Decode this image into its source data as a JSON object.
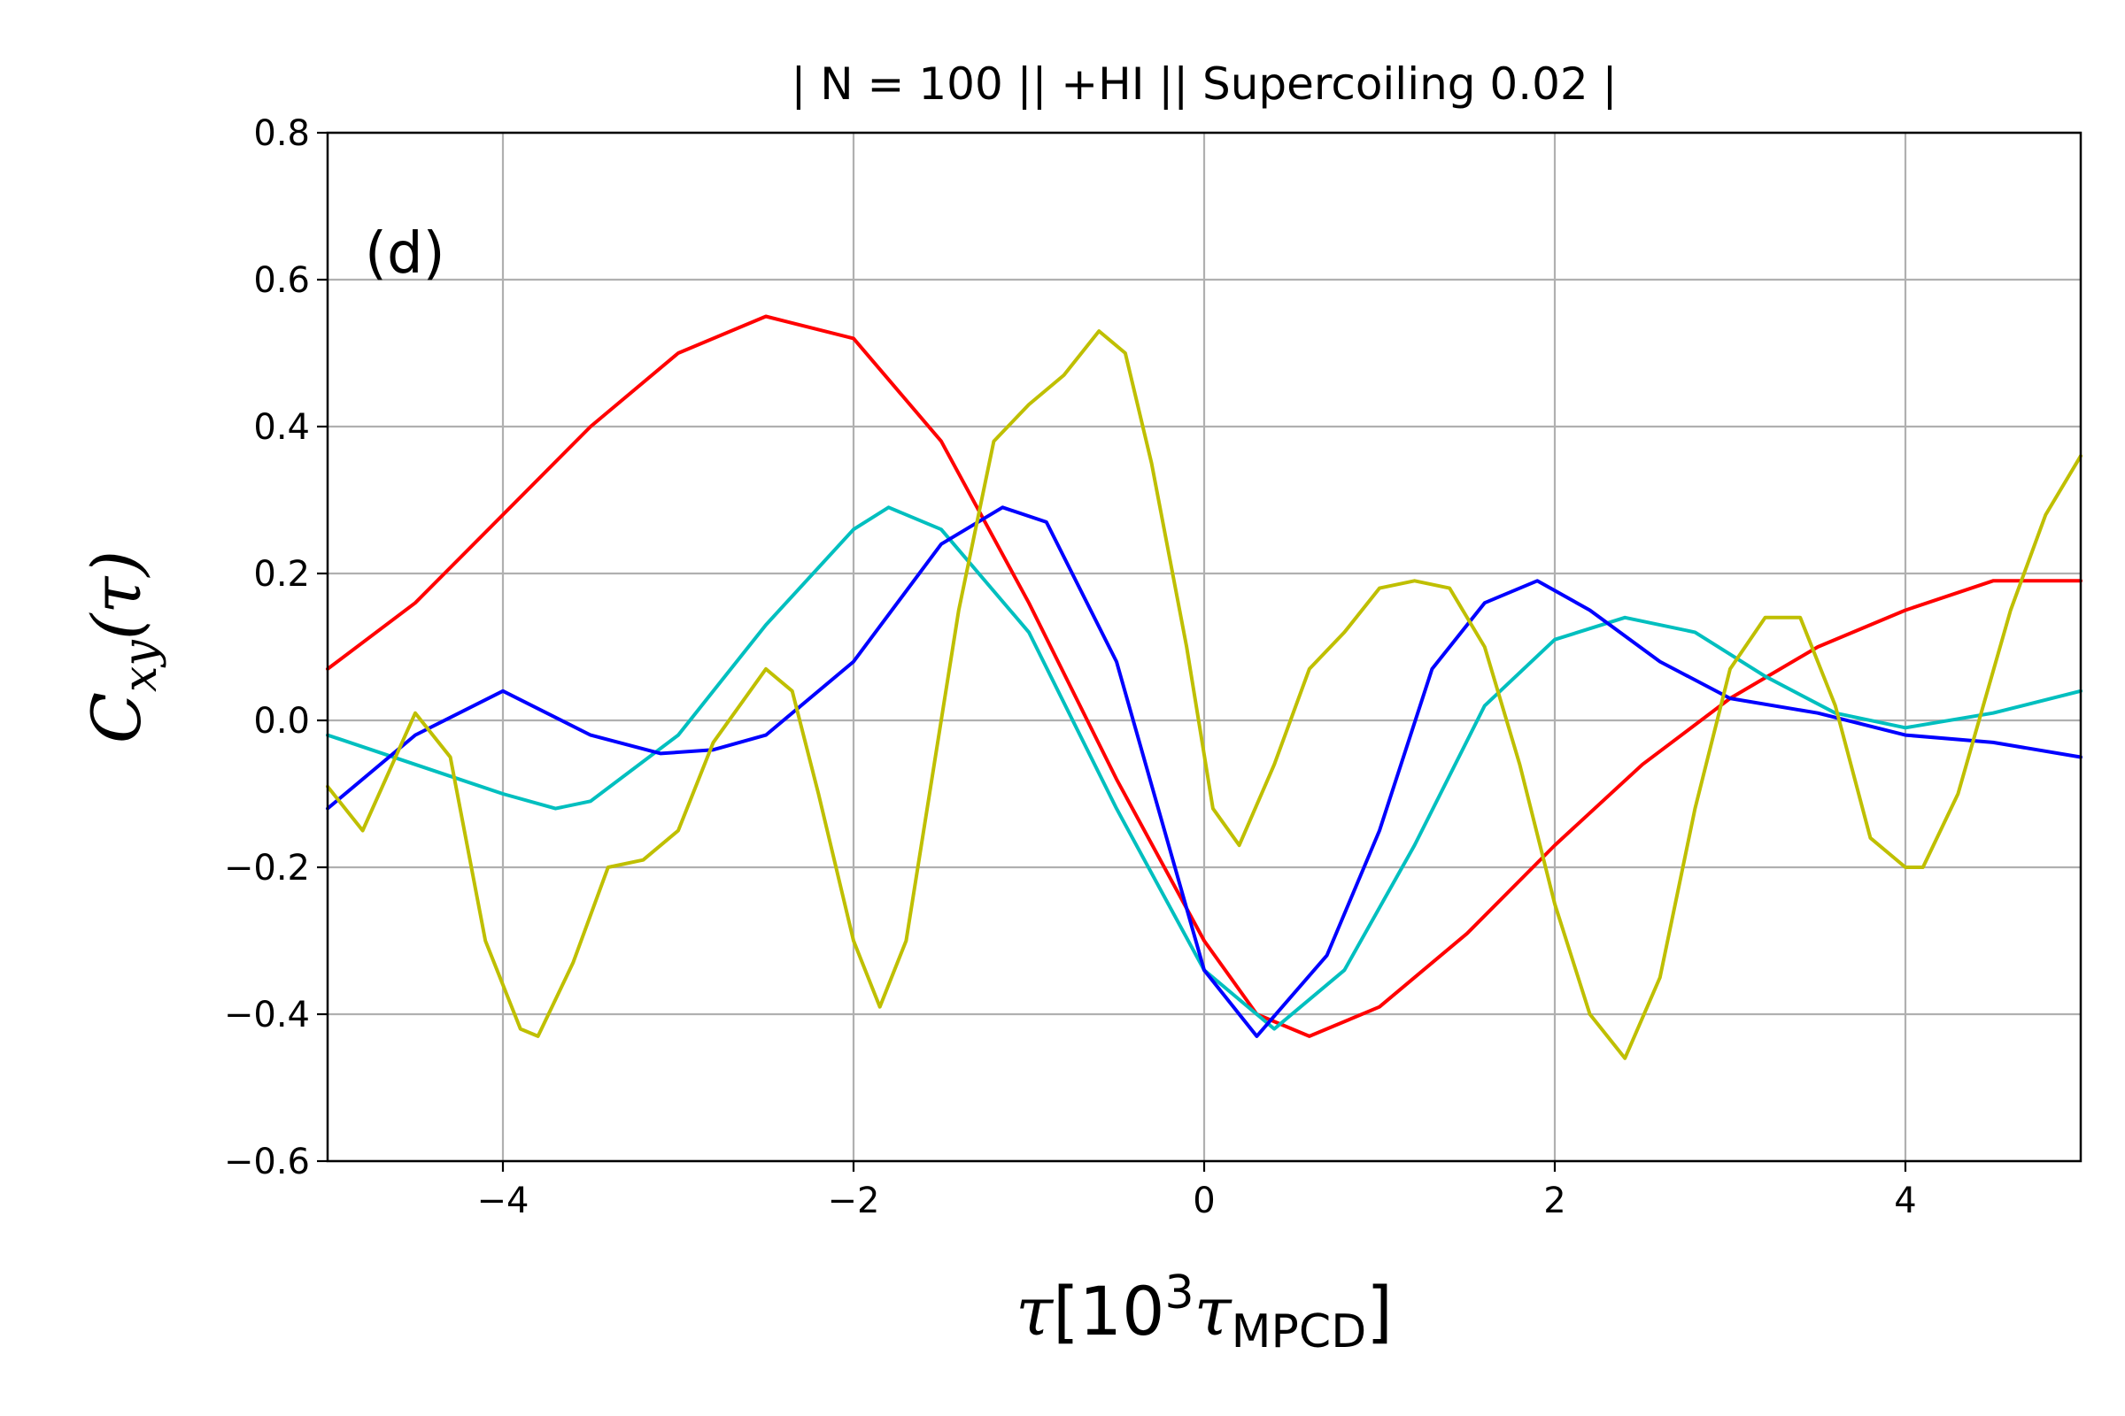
{
  "chart_data": {
    "type": "line",
    "title": "| N = 100 || +HI || Supercoiling 0.02 |",
    "panel_label": "(d)",
    "ylabel": {
      "main": "C",
      "sub": "xy",
      "arg": "(τ)"
    },
    "xlabel": {
      "sym": "τ",
      "open": "[10",
      "sup": "3",
      "tau": "τ",
      "sub": "MPCD",
      "close": "]"
    },
    "xlim": [
      -5,
      5
    ],
    "ylim": [
      -0.6,
      0.8
    ],
    "xticks": [
      -4,
      -2,
      0,
      2,
      4
    ],
    "xtick_labels": [
      "−4",
      "−2",
      "0",
      "2",
      "4"
    ],
    "yticks": [
      -0.6,
      -0.4,
      -0.2,
      0.0,
      0.2,
      0.4,
      0.6,
      0.8
    ],
    "ytick_labels": [
      "−0.6",
      "−0.4",
      "−0.2",
      "0.0",
      "0.2",
      "0.4",
      "0.6",
      "0.8"
    ],
    "grid": true,
    "series": [
      {
        "name": "red",
        "color": "#ff0000",
        "x": [
          -5,
          -4.5,
          -4,
          -3.5,
          -3,
          -2.5,
          -2,
          -1.5,
          -1,
          -0.5,
          0,
          0.3,
          0.6,
          1,
          1.5,
          2,
          2.5,
          3,
          3.5,
          4,
          4.5,
          5
        ],
        "y": [
          0.07,
          0.16,
          0.28,
          0.4,
          0.5,
          0.55,
          0.52,
          0.38,
          0.16,
          -0.08,
          -0.3,
          -0.4,
          -0.43,
          -0.39,
          -0.29,
          -0.17,
          -0.06,
          0.03,
          0.1,
          0.15,
          0.19,
          0.19
        ]
      },
      {
        "name": "cyan",
        "color": "#00bfbf",
        "x": [
          -5,
          -4.5,
          -4,
          -3.7,
          -3.5,
          -3,
          -2.5,
          -2,
          -1.8,
          -1.5,
          -1,
          -0.5,
          0,
          0.4,
          0.8,
          1.2,
          1.6,
          2,
          2.4,
          2.8,
          3.2,
          3.6,
          4,
          4.5,
          5
        ],
        "y": [
          -0.02,
          -0.06,
          -0.1,
          -0.12,
          -0.11,
          -0.02,
          0.13,
          0.26,
          0.29,
          0.26,
          0.12,
          -0.12,
          -0.34,
          -0.42,
          -0.34,
          -0.17,
          0.02,
          0.11,
          0.14,
          0.12,
          0.06,
          0.01,
          -0.01,
          0.01,
          0.04
        ]
      },
      {
        "name": "blue",
        "color": "#0000ff",
        "x": [
          -5,
          -4.5,
          -4,
          -3.5,
          -3.1,
          -2.8,
          -2.5,
          -2,
          -1.5,
          -1.15,
          -0.9,
          -0.5,
          0,
          0.3,
          0.7,
          1,
          1.3,
          1.6,
          1.9,
          2.2,
          2.6,
          3,
          3.5,
          4,
          4.5,
          5
        ],
        "y": [
          -0.12,
          -0.02,
          0.04,
          -0.02,
          -0.045,
          -0.04,
          -0.02,
          0.08,
          0.24,
          0.29,
          0.27,
          0.08,
          -0.34,
          -0.43,
          -0.32,
          -0.15,
          0.07,
          0.16,
          0.19,
          0.15,
          0.08,
          0.03,
          0.01,
          -0.02,
          -0.03,
          -0.05
        ]
      },
      {
        "name": "yellow",
        "color": "#bfbf00",
        "x": [
          -5,
          -4.8,
          -4.5,
          -4.3,
          -4.1,
          -3.9,
          -3.8,
          -3.6,
          -3.4,
          -3.2,
          -3,
          -2.8,
          -2.5,
          -2.35,
          -2.2,
          -2,
          -1.85,
          -1.7,
          -1.4,
          -1.2,
          -1,
          -0.8,
          -0.6,
          -0.45,
          -0.3,
          -0.1,
          0.05,
          0.2,
          0.4,
          0.6,
          0.8,
          1,
          1.2,
          1.4,
          1.6,
          1.8,
          2,
          2.2,
          2.4,
          2.6,
          2.8,
          3,
          3.2,
          3.4,
          3.6,
          3.8,
          4,
          4.1,
          4.3,
          4.6,
          4.8,
          5
        ],
        "y": [
          -0.09,
          -0.15,
          0.01,
          -0.05,
          -0.3,
          -0.42,
          -0.43,
          -0.33,
          -0.2,
          -0.19,
          -0.15,
          -0.03,
          0.07,
          0.04,
          -0.1,
          -0.3,
          -0.39,
          -0.3,
          0.15,
          0.38,
          0.43,
          0.47,
          0.53,
          0.5,
          0.35,
          0.1,
          -0.12,
          -0.17,
          -0.06,
          0.07,
          0.12,
          0.18,
          0.19,
          0.18,
          0.1,
          -0.06,
          -0.25,
          -0.4,
          -0.46,
          -0.35,
          -0.12,
          0.07,
          0.14,
          0.14,
          0.02,
          -0.16,
          -0.2,
          -0.2,
          -0.1,
          0.15,
          0.28,
          0.36
        ]
      }
    ]
  }
}
